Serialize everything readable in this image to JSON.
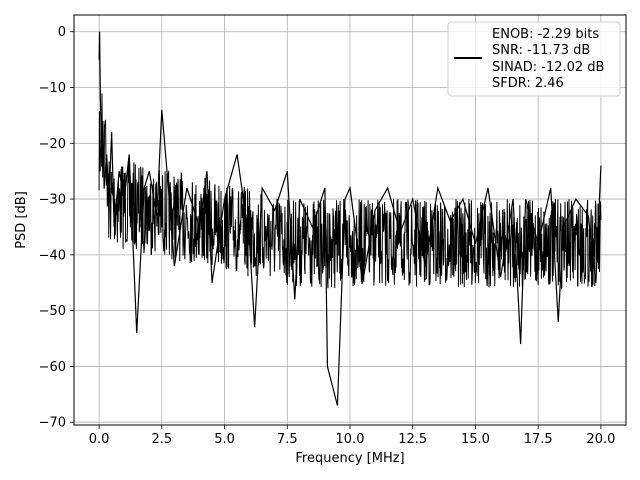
{
  "chart_data": {
    "type": "line",
    "title": "",
    "xlabel": "Frequency [MHz]",
    "ylabel": "PSD [dB]",
    "xlim": [
      -1.0,
      21.0
    ],
    "ylim": [
      -70.5,
      3.0
    ],
    "grid": true,
    "legend_position": "top-right",
    "x_ticks": [
      0.0,
      2.5,
      5.0,
      7.5,
      10.0,
      12.5,
      15.0,
      17.5,
      20.0
    ],
    "x_tick_labels": [
      "0.0",
      "2.5",
      "5.0",
      "7.5",
      "10.0",
      "12.5",
      "15.0",
      "17.5",
      "20.0"
    ],
    "y_ticks": [
      0,
      -10,
      -20,
      -30,
      -40,
      -50,
      -60,
      -70
    ],
    "y_tick_labels": [
      "0",
      "−10",
      "−20",
      "−30",
      "−40",
      "−50",
      "−60",
      "−70"
    ],
    "series": [
      {
        "name": "ENOB: -2.29 bits",
        "color": "#000000",
        "x": [
          0.0,
          0.02,
          0.05,
          0.1,
          0.15,
          0.2,
          0.3,
          0.4,
          0.5,
          0.6,
          0.8,
          1.0,
          1.2,
          1.5,
          1.8,
          2.0,
          2.3,
          2.5,
          2.8,
          3.0,
          3.5,
          4.0,
          4.3,
          4.5,
          5.0,
          5.5,
          6.0,
          6.2,
          6.5,
          7.0,
          7.5,
          7.8,
          8.0,
          8.5,
          9.0,
          9.1,
          9.5,
          9.8,
          10.0,
          10.5,
          11.0,
          11.5,
          12.0,
          12.5,
          13.0,
          13.5,
          14.0,
          14.5,
          15.0,
          15.5,
          16.0,
          16.5,
          16.8,
          17.0,
          17.5,
          18.0,
          18.3,
          18.5,
          19.0,
          19.5,
          19.8,
          20.0
        ],
        "y": [
          -5,
          0,
          -12,
          -20,
          -16,
          -28,
          -22,
          -30,
          -18,
          -35,
          -25,
          -30,
          -22,
          -54,
          -28,
          -25,
          -33,
          -14,
          -30,
          -42,
          -28,
          -35,
          -25,
          -45,
          -30,
          -22,
          -38,
          -53,
          -28,
          -32,
          -25,
          -48,
          -30,
          -35,
          -28,
          -60,
          -67,
          -30,
          -28,
          -45,
          -32,
          -28,
          -36,
          -30,
          -42,
          -28,
          -34,
          -30,
          -38,
          -28,
          -44,
          -30,
          -56,
          -30,
          -38,
          -28,
          -52,
          -35,
          -30,
          -33,
          -45,
          -24
        ]
      }
    ],
    "legend_entries": [
      "ENOB: -2.29 bits",
      "SNR: -11.73 dB",
      "SINAD: -12.02 dB",
      "SFDR: 2.46"
    ]
  }
}
